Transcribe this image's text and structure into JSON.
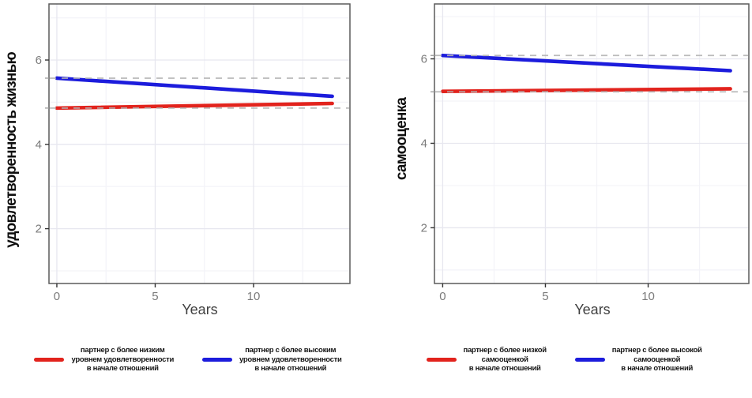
{
  "colors": {
    "red": "#E2231D",
    "blue": "#1C1CDC",
    "ref_line": "#B3B3B3",
    "grid_major": "#E7E7EF",
    "grid_minor": "#F3F3F8",
    "panel_border": "#5A5A5A",
    "tick": "#333333",
    "ref_tick": "#999999"
  },
  "chart_data": [
    {
      "type": "line",
      "title": "",
      "ylabel": "удовлетворенность жизнью",
      "xlabel": "Years",
      "x_ticks": [
        0,
        5,
        10
      ],
      "y_ticks": [
        2,
        4,
        6
      ],
      "x_minor": [
        2.5,
        7.5,
        12.5
      ],
      "y_minor": [
        1,
        3,
        5,
        7
      ],
      "xlim": [
        -0.4,
        14.9
      ],
      "ylim": [
        0.7,
        7.33
      ],
      "x": [
        0,
        14
      ],
      "series": [
        {
          "name": "lower-initial-satisfaction-partner",
          "color": "#E2231D",
          "values": [
            4.86,
            4.97
          ],
          "ref": 4.86,
          "legend": "партнер с более низким\nуровнем удовлетворенности\nв начале отношений"
        },
        {
          "name": "higher-initial-satisfaction-partner",
          "color": "#1C1CDC",
          "values": [
            5.57,
            5.14
          ],
          "ref": 5.57,
          "legend": "партнер с более высоким\nуровнем удовлетворенности\nв начале отношений"
        }
      ],
      "legend_position": "bottom",
      "grid": true
    },
    {
      "type": "line",
      "title": "",
      "ylabel": "самооценка",
      "xlabel": "Years",
      "x_ticks": [
        0,
        5,
        10
      ],
      "y_ticks": [
        2,
        4,
        6
      ],
      "x_minor": [
        2.5,
        7.5,
        12.5
      ],
      "y_minor": [
        1,
        3,
        5,
        7
      ],
      "xlim": [
        -0.4,
        14.9
      ],
      "ylim": [
        0.68,
        7.3
      ],
      "x": [
        0,
        14
      ],
      "series": [
        {
          "name": "lower-initial-self-esteem-partner",
          "color": "#E2231D",
          "values": [
            5.23,
            5.29
          ],
          "ref": 5.22,
          "legend": "партнер с более низкой\nсамооценкой\nв начале отношений"
        },
        {
          "name": "higher-initial-self-esteem-partner",
          "color": "#1C1CDC",
          "values": [
            6.08,
            5.72
          ],
          "ref": 6.08,
          "legend": "партнер с более высокой\nсамооценкой\nв начале отношений"
        }
      ],
      "legend_position": "bottom",
      "grid": true
    }
  ]
}
